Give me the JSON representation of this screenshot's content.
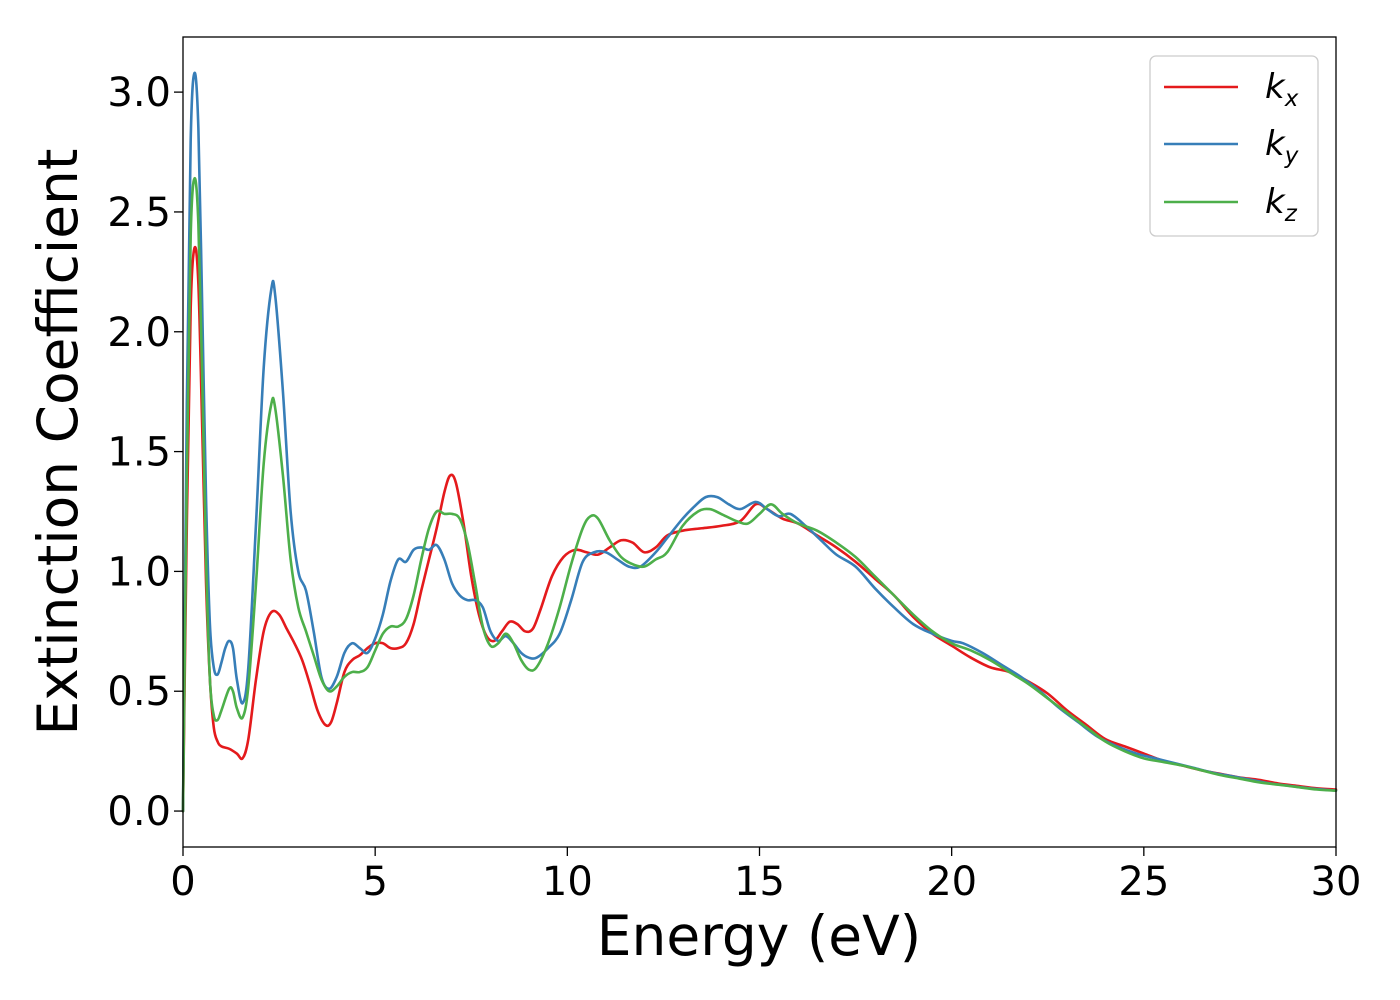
{
  "chart_data": {
    "type": "line",
    "title": "",
    "xlabel": "Energy (eV)",
    "ylabel": "Extinction Coefficient",
    "xlim": [
      0,
      30
    ],
    "ylim": [
      -0.15,
      3.23
    ],
    "xticks": [
      0,
      5,
      10,
      15,
      20,
      25,
      30
    ],
    "xtick_labels": [
      "0",
      "5",
      "10",
      "15",
      "20",
      "25",
      "30"
    ],
    "yticks": [
      0.0,
      0.5,
      1.0,
      1.5,
      2.0,
      2.5,
      3.0
    ],
    "ytick_labels": [
      "0.0",
      "0.5",
      "1.0",
      "1.5",
      "2.0",
      "2.5",
      "3.0"
    ],
    "grid": false,
    "legend_position": "top-right",
    "series": [
      {
        "name": "k",
        "subscript": "x",
        "color": "#e41a1c",
        "points": [
          [
            0,
            0.0
          ],
          [
            0.1,
            1.2
          ],
          [
            0.2,
            2.1
          ],
          [
            0.3,
            2.35
          ],
          [
            0.4,
            2.2
          ],
          [
            0.5,
            1.6
          ],
          [
            0.6,
            0.95
          ],
          [
            0.7,
            0.55
          ],
          [
            0.8,
            0.35
          ],
          [
            0.9,
            0.29
          ],
          [
            1.0,
            0.27
          ],
          [
            1.2,
            0.26
          ],
          [
            1.4,
            0.24
          ],
          [
            1.55,
            0.22
          ],
          [
            1.7,
            0.3
          ],
          [
            1.9,
            0.55
          ],
          [
            2.1,
            0.75
          ],
          [
            2.3,
            0.83
          ],
          [
            2.5,
            0.82
          ],
          [
            2.7,
            0.76
          ],
          [
            2.9,
            0.7
          ],
          [
            3.1,
            0.63
          ],
          [
            3.3,
            0.53
          ],
          [
            3.5,
            0.42
          ],
          [
            3.7,
            0.36
          ],
          [
            3.85,
            0.37
          ],
          [
            4.0,
            0.45
          ],
          [
            4.2,
            0.58
          ],
          [
            4.4,
            0.63
          ],
          [
            4.6,
            0.65
          ],
          [
            4.8,
            0.68
          ],
          [
            5.0,
            0.7
          ],
          [
            5.2,
            0.7
          ],
          [
            5.4,
            0.68
          ],
          [
            5.6,
            0.68
          ],
          [
            5.8,
            0.7
          ],
          [
            6.0,
            0.78
          ],
          [
            6.2,
            0.92
          ],
          [
            6.4,
            1.05
          ],
          [
            6.6,
            1.18
          ],
          [
            6.8,
            1.33
          ],
          [
            6.95,
            1.4
          ],
          [
            7.1,
            1.37
          ],
          [
            7.3,
            1.2
          ],
          [
            7.5,
            0.98
          ],
          [
            7.7,
            0.82
          ],
          [
            7.9,
            0.73
          ],
          [
            8.1,
            0.71
          ],
          [
            8.3,
            0.75
          ],
          [
            8.5,
            0.79
          ],
          [
            8.7,
            0.78
          ],
          [
            8.9,
            0.75
          ],
          [
            9.1,
            0.76
          ],
          [
            9.3,
            0.84
          ],
          [
            9.6,
            0.98
          ],
          [
            9.9,
            1.06
          ],
          [
            10.2,
            1.09
          ],
          [
            10.5,
            1.08
          ],
          [
            10.8,
            1.07
          ],
          [
            11.1,
            1.1
          ],
          [
            11.4,
            1.13
          ],
          [
            11.7,
            1.12
          ],
          [
            12.0,
            1.08
          ],
          [
            12.3,
            1.1
          ],
          [
            12.6,
            1.15
          ],
          [
            13.0,
            1.17
          ],
          [
            13.5,
            1.18
          ],
          [
            14.0,
            1.19
          ],
          [
            14.5,
            1.21
          ],
          [
            14.9,
            1.28
          ],
          [
            15.2,
            1.26
          ],
          [
            15.6,
            1.22
          ],
          [
            16.0,
            1.2
          ],
          [
            16.5,
            1.15
          ],
          [
            17.0,
            1.1
          ],
          [
            17.5,
            1.04
          ],
          [
            18.0,
            0.97
          ],
          [
            18.5,
            0.9
          ],
          [
            19.0,
            0.81
          ],
          [
            19.5,
            0.74
          ],
          [
            20.0,
            0.69
          ],
          [
            20.5,
            0.64
          ],
          [
            21.0,
            0.6
          ],
          [
            21.5,
            0.58
          ],
          [
            22.0,
            0.54
          ],
          [
            22.5,
            0.49
          ],
          [
            23.0,
            0.42
          ],
          [
            23.5,
            0.36
          ],
          [
            24.0,
            0.3
          ],
          [
            24.5,
            0.27
          ],
          [
            25.0,
            0.24
          ],
          [
            25.5,
            0.21
          ],
          [
            26.0,
            0.19
          ],
          [
            26.5,
            0.17
          ],
          [
            27.0,
            0.155
          ],
          [
            27.5,
            0.14
          ],
          [
            28.0,
            0.13
          ],
          [
            28.5,
            0.115
          ],
          [
            29.0,
            0.105
          ],
          [
            29.5,
            0.095
          ],
          [
            30.0,
            0.09
          ]
        ]
      },
      {
        "name": "k",
        "subscript": "y",
        "color": "#377eb8",
        "points": [
          [
            0,
            0.0
          ],
          [
            0.1,
            1.7
          ],
          [
            0.2,
            2.8
          ],
          [
            0.3,
            3.08
          ],
          [
            0.4,
            2.85
          ],
          [
            0.5,
            2.1
          ],
          [
            0.6,
            1.3
          ],
          [
            0.7,
            0.78
          ],
          [
            0.8,
            0.6
          ],
          [
            0.9,
            0.57
          ],
          [
            1.0,
            0.62
          ],
          [
            1.1,
            0.68
          ],
          [
            1.2,
            0.71
          ],
          [
            1.3,
            0.68
          ],
          [
            1.4,
            0.55
          ],
          [
            1.55,
            0.45
          ],
          [
            1.7,
            0.6
          ],
          [
            1.9,
            1.2
          ],
          [
            2.1,
            1.85
          ],
          [
            2.3,
            2.18
          ],
          [
            2.4,
            2.15
          ],
          [
            2.6,
            1.75
          ],
          [
            2.8,
            1.25
          ],
          [
            3.0,
            1.0
          ],
          [
            3.2,
            0.92
          ],
          [
            3.4,
            0.75
          ],
          [
            3.6,
            0.56
          ],
          [
            3.8,
            0.51
          ],
          [
            4.0,
            0.56
          ],
          [
            4.2,
            0.66
          ],
          [
            4.4,
            0.7
          ],
          [
            4.6,
            0.68
          ],
          [
            4.8,
            0.66
          ],
          [
            5.0,
            0.72
          ],
          [
            5.2,
            0.82
          ],
          [
            5.4,
            0.96
          ],
          [
            5.6,
            1.05
          ],
          [
            5.8,
            1.04
          ],
          [
            6.0,
            1.09
          ],
          [
            6.2,
            1.1
          ],
          [
            6.4,
            1.09
          ],
          [
            6.6,
            1.11
          ],
          [
            6.8,
            1.05
          ],
          [
            7.0,
            0.95
          ],
          [
            7.2,
            0.9
          ],
          [
            7.4,
            0.88
          ],
          [
            7.6,
            0.88
          ],
          [
            7.8,
            0.85
          ],
          [
            8.0,
            0.75
          ],
          [
            8.2,
            0.71
          ],
          [
            8.4,
            0.73
          ],
          [
            8.6,
            0.7
          ],
          [
            8.8,
            0.66
          ],
          [
            9.0,
            0.64
          ],
          [
            9.2,
            0.64
          ],
          [
            9.5,
            0.68
          ],
          [
            9.8,
            0.74
          ],
          [
            10.1,
            0.88
          ],
          [
            10.4,
            1.04
          ],
          [
            10.7,
            1.08
          ],
          [
            11.0,
            1.08
          ],
          [
            11.3,
            1.05
          ],
          [
            11.6,
            1.02
          ],
          [
            11.9,
            1.02
          ],
          [
            12.3,
            1.08
          ],
          [
            12.6,
            1.14
          ],
          [
            13.0,
            1.22
          ],
          [
            13.3,
            1.27
          ],
          [
            13.6,
            1.31
          ],
          [
            13.9,
            1.31
          ],
          [
            14.2,
            1.28
          ],
          [
            14.5,
            1.26
          ],
          [
            14.9,
            1.29
          ],
          [
            15.2,
            1.26
          ],
          [
            15.5,
            1.23
          ],
          [
            15.8,
            1.24
          ],
          [
            16.2,
            1.19
          ],
          [
            16.6,
            1.13
          ],
          [
            17.0,
            1.07
          ],
          [
            17.5,
            1.02
          ],
          [
            18.0,
            0.93
          ],
          [
            18.5,
            0.85
          ],
          [
            19.0,
            0.78
          ],
          [
            19.5,
            0.74
          ],
          [
            20.0,
            0.71
          ],
          [
            20.3,
            0.7
          ],
          [
            20.8,
            0.66
          ],
          [
            21.3,
            0.61
          ],
          [
            21.8,
            0.56
          ],
          [
            22.3,
            0.5
          ],
          [
            22.8,
            0.43
          ],
          [
            23.3,
            0.37
          ],
          [
            23.8,
            0.31
          ],
          [
            24.3,
            0.27
          ],
          [
            24.8,
            0.24
          ],
          [
            25.3,
            0.22
          ],
          [
            25.8,
            0.2
          ],
          [
            26.3,
            0.18
          ],
          [
            26.8,
            0.16
          ],
          [
            27.3,
            0.145
          ],
          [
            27.8,
            0.13
          ],
          [
            28.3,
            0.115
          ],
          [
            28.8,
            0.105
          ],
          [
            29.3,
            0.095
          ],
          [
            30.0,
            0.085
          ]
        ]
      },
      {
        "name": "k",
        "subscript": "z",
        "color": "#4daf4a",
        "points": [
          [
            0,
            0.0
          ],
          [
            0.1,
            1.4
          ],
          [
            0.2,
            2.4
          ],
          [
            0.3,
            2.64
          ],
          [
            0.4,
            2.45
          ],
          [
            0.5,
            1.8
          ],
          [
            0.6,
            1.05
          ],
          [
            0.7,
            0.55
          ],
          [
            0.8,
            0.4
          ],
          [
            0.9,
            0.38
          ],
          [
            1.0,
            0.42
          ],
          [
            1.2,
            0.51
          ],
          [
            1.3,
            0.5
          ],
          [
            1.4,
            0.43
          ],
          [
            1.55,
            0.39
          ],
          [
            1.7,
            0.52
          ],
          [
            1.9,
            0.95
          ],
          [
            2.1,
            1.45
          ],
          [
            2.3,
            1.7
          ],
          [
            2.4,
            1.68
          ],
          [
            2.6,
            1.4
          ],
          [
            2.8,
            1.05
          ],
          [
            3.0,
            0.85
          ],
          [
            3.2,
            0.75
          ],
          [
            3.4,
            0.65
          ],
          [
            3.6,
            0.55
          ],
          [
            3.8,
            0.5
          ],
          [
            4.0,
            0.52
          ],
          [
            4.2,
            0.56
          ],
          [
            4.4,
            0.58
          ],
          [
            4.6,
            0.58
          ],
          [
            4.8,
            0.6
          ],
          [
            5.0,
            0.67
          ],
          [
            5.2,
            0.74
          ],
          [
            5.4,
            0.77
          ],
          [
            5.6,
            0.77
          ],
          [
            5.8,
            0.8
          ],
          [
            6.0,
            0.9
          ],
          [
            6.2,
            1.05
          ],
          [
            6.4,
            1.18
          ],
          [
            6.6,
            1.25
          ],
          [
            6.8,
            1.24
          ],
          [
            7.0,
            1.24
          ],
          [
            7.2,
            1.22
          ],
          [
            7.4,
            1.12
          ],
          [
            7.6,
            0.95
          ],
          [
            7.8,
            0.77
          ],
          [
            8.0,
            0.69
          ],
          [
            8.2,
            0.7
          ],
          [
            8.4,
            0.74
          ],
          [
            8.6,
            0.7
          ],
          [
            8.8,
            0.63
          ],
          [
            9.0,
            0.59
          ],
          [
            9.2,
            0.6
          ],
          [
            9.5,
            0.7
          ],
          [
            9.8,
            0.85
          ],
          [
            10.1,
            1.03
          ],
          [
            10.4,
            1.18
          ],
          [
            10.6,
            1.23
          ],
          [
            10.8,
            1.22
          ],
          [
            11.1,
            1.13
          ],
          [
            11.4,
            1.06
          ],
          [
            11.7,
            1.03
          ],
          [
            12.0,
            1.02
          ],
          [
            12.3,
            1.05
          ],
          [
            12.6,
            1.08
          ],
          [
            13.0,
            1.19
          ],
          [
            13.4,
            1.25
          ],
          [
            13.7,
            1.26
          ],
          [
            14.0,
            1.24
          ],
          [
            14.4,
            1.21
          ],
          [
            14.7,
            1.2
          ],
          [
            15.0,
            1.24
          ],
          [
            15.3,
            1.28
          ],
          [
            15.6,
            1.24
          ],
          [
            16.0,
            1.2
          ],
          [
            16.5,
            1.17
          ],
          [
            17.0,
            1.12
          ],
          [
            17.5,
            1.06
          ],
          [
            18.0,
            0.98
          ],
          [
            18.5,
            0.9
          ],
          [
            19.0,
            0.82
          ],
          [
            19.5,
            0.75
          ],
          [
            20.0,
            0.7
          ],
          [
            20.5,
            0.67
          ],
          [
            21.0,
            0.63
          ],
          [
            21.5,
            0.58
          ],
          [
            22.0,
            0.53
          ],
          [
            22.5,
            0.47
          ],
          [
            23.0,
            0.41
          ],
          [
            23.5,
            0.35
          ],
          [
            24.0,
            0.29
          ],
          [
            24.5,
            0.25
          ],
          [
            25.0,
            0.22
          ],
          [
            25.5,
            0.205
          ],
          [
            26.0,
            0.19
          ],
          [
            26.5,
            0.17
          ],
          [
            27.0,
            0.15
          ],
          [
            27.5,
            0.135
          ],
          [
            28.0,
            0.12
          ],
          [
            28.5,
            0.11
          ],
          [
            29.0,
            0.1
          ],
          [
            29.5,
            0.09
          ],
          [
            30.0,
            0.085
          ]
        ]
      }
    ]
  }
}
